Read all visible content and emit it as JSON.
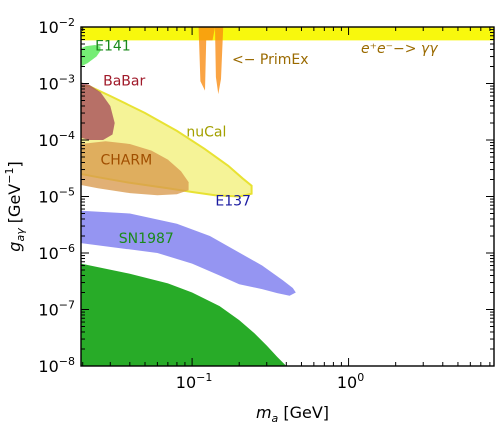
{
  "chart_data": {
    "type": "area",
    "title": "",
    "xlabel": "m_a [GeV]",
    "ylabel": "g_aγ [GeV^-1]",
    "xscale": "log",
    "yscale": "log",
    "xlim": [
      0.0195,
      8.5
    ],
    "ylim": [
      1e-08,
      0.01
    ],
    "grid": false,
    "x_ticks": [
      {
        "value": 0.1,
        "base": "10",
        "exp": "−1"
      },
      {
        "value": 1,
        "base": "10",
        "exp": "0"
      }
    ],
    "y_ticks": [
      {
        "value": 0.01,
        "base": "10",
        "exp": "−2"
      },
      {
        "value": 0.001,
        "base": "10",
        "exp": "−3"
      },
      {
        "value": 0.0001,
        "base": "10",
        "exp": "−4"
      },
      {
        "value": 1e-05,
        "base": "10",
        "exp": "−5"
      },
      {
        "value": 1e-06,
        "base": "10",
        "exp": "−6"
      },
      {
        "value": 1e-07,
        "base": "10",
        "exp": "−7"
      },
      {
        "value": 1e-08,
        "base": "10",
        "exp": "−8"
      }
    ],
    "series": [
      {
        "name": "SN1987",
        "color": "#1ca61c",
        "label_at": [
          0.034,
          1.5e-06
        ],
        "label_color": "#1a8a1a",
        "polygon": [
          [
            0.0195,
            6.5e-07
          ],
          [
            0.04,
            4.3e-07
          ],
          [
            0.07,
            2.9e-07
          ],
          [
            0.1,
            2e-07
          ],
          [
            0.15,
            1.15e-07
          ],
          [
            0.2,
            6.5e-08
          ],
          [
            0.25,
            3.8e-08
          ],
          [
            0.3,
            2.3e-08
          ],
          [
            0.35,
            1.45e-08
          ],
          [
            0.4,
            1e-08
          ],
          [
            0.0195,
            1e-08
          ]
        ]
      },
      {
        "name": "E137",
        "color": "#7777ee",
        "label_at": [
          0.141,
          7e-06
        ],
        "label_color": "#1a1aa0",
        "polygon": [
          [
            0.0195,
            5.6e-06
          ],
          [
            0.04,
            5e-06
          ],
          [
            0.08,
            3.3e-06
          ],
          [
            0.13,
            2e-06
          ],
          [
            0.18,
            1.2e-06
          ],
          [
            0.28,
            6e-07
          ],
          [
            0.38,
            3.3e-07
          ],
          [
            0.44,
            2.4e-07
          ],
          [
            0.46,
            2e-07
          ],
          [
            0.42,
            1.75e-07
          ],
          [
            0.35,
            1.95e-07
          ],
          [
            0.28,
            2.3e-07
          ],
          [
            0.2,
            2.8e-07
          ],
          [
            0.15,
            4e-07
          ],
          [
            0.1,
            6.5e-07
          ],
          [
            0.06,
            1e-06
          ],
          [
            0.0195,
            1.5e-06
          ]
        ]
      },
      {
        "name": "nuCal",
        "color": "#f2f07a",
        "edge": "#e8e233",
        "label_at": [
          0.092,
          0.000115
        ],
        "label_color": "#a3a000",
        "polygon": [
          [
            0.022,
            0.0009
          ],
          [
            0.03,
            0.0006
          ],
          [
            0.05,
            0.0003
          ],
          [
            0.08,
            0.000145
          ],
          [
            0.12,
            7e-05
          ],
          [
            0.17,
            3.5e-05
          ],
          [
            0.21,
            2.1e-05
          ],
          [
            0.24,
            1.55e-05
          ],
          [
            0.24,
            1.12e-05
          ],
          [
            0.2,
            1e-05
          ],
          [
            0.14,
            1.05e-05
          ],
          [
            0.1,
            1.2e-05
          ],
          [
            0.07,
            1.4e-05
          ],
          [
            0.04,
            1.75e-05
          ],
          [
            0.025,
            2.2e-05
          ],
          [
            0.0195,
            2.5e-05
          ],
          [
            0.0195,
            0.0009
          ]
        ]
      },
      {
        "name": "CHARM",
        "color": "#d89a4e",
        "label_at": [
          0.026,
          3.7e-05
        ],
        "label_color": "#a04e00",
        "polygon": [
          [
            0.0195,
            8.5e-05
          ],
          [
            0.028,
            9.5e-05
          ],
          [
            0.04,
            8.5e-05
          ],
          [
            0.055,
            6.5e-05
          ],
          [
            0.07,
            4.5e-05
          ],
          [
            0.085,
            2.8e-05
          ],
          [
            0.095,
            1.8e-05
          ],
          [
            0.095,
            1.3e-05
          ],
          [
            0.08,
            1.1e-05
          ],
          [
            0.06,
            1.05e-05
          ],
          [
            0.04,
            1.15e-05
          ],
          [
            0.025,
            1.4e-05
          ],
          [
            0.0195,
            1.6e-05
          ]
        ]
      },
      {
        "name": "BaBar",
        "color": "#a54a5a",
        "label_at": [
          0.027,
          0.00093
        ],
        "label_color": "#a01a2a",
        "polygon": [
          [
            0.0195,
            0.00105
          ],
          [
            0.022,
            0.00095
          ],
          [
            0.026,
            0.0007
          ],
          [
            0.03,
            0.0004
          ],
          [
            0.032,
            0.0002
          ],
          [
            0.031,
            0.000125
          ],
          [
            0.027,
            0.0001
          ],
          [
            0.022,
            0.0001
          ],
          [
            0.0195,
            0.00011
          ]
        ]
      },
      {
        "name": "e⁺e⁻−> γγ",
        "color": "#f8f800",
        "label_at": [
          1.2,
          0.0035
        ],
        "label_color": "#9a6a00",
        "polygon": [
          [
            0.0195,
            0.0058
          ],
          [
            8.5,
            0.0058
          ],
          [
            8.5,
            0.0098
          ],
          [
            0.0195,
            0.0098
          ]
        ]
      },
      {
        "name": "E141",
        "color": "#4ee84e",
        "label_at": [
          0.024,
          0.0038
        ],
        "label_color": "#1a8a1a",
        "polygon": [
          [
            0.0195,
            0.002
          ],
          [
            0.0215,
            0.0023
          ],
          [
            0.0245,
            0.003
          ],
          [
            0.026,
            0.0038
          ],
          [
            0.026,
            0.0045
          ],
          [
            0.024,
            0.0048
          ],
          [
            0.021,
            0.0046
          ],
          [
            0.0195,
            0.0042
          ]
        ]
      },
      {
        "name": "<− PrimEx",
        "color": "#f88a10",
        "label_at": [
          0.18,
          0.0022
        ],
        "label_color": "#9a6a00",
        "polygon": [
          [
            0.11,
            0.0098
          ],
          [
            0.113,
            0.0011
          ],
          [
            0.121,
            0.00075
          ],
          [
            0.123,
            0.0058
          ],
          [
            0.135,
            0.0058
          ],
          [
            0.14,
            0.0098
          ],
          [
            0.142,
            0.0013
          ],
          [
            0.147,
            0.00065
          ],
          [
            0.153,
            0.0012
          ],
          [
            0.158,
            0.0098
          ]
        ]
      }
    ]
  }
}
